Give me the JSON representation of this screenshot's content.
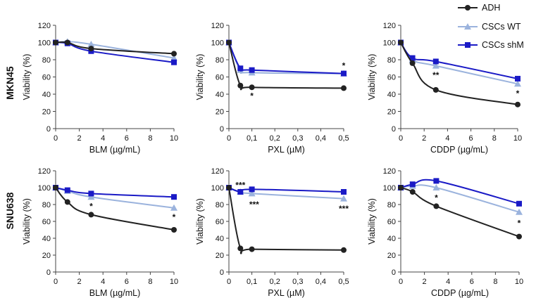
{
  "legend": [
    {
      "name": "ADH",
      "color": "#222222",
      "marker": "circle"
    },
    {
      "name": "CSCs WT",
      "color": "#9bb3dd",
      "marker": "triangle"
    },
    {
      "name": "CSCs shM",
      "color": "#1a1ac6",
      "marker": "square"
    }
  ],
  "row_labels": [
    "MKN45",
    "SNU638"
  ],
  "chart_data": [
    {
      "type": "line",
      "id": "mkn45-blm",
      "row": "MKN45",
      "xlabel": "BLM (µg/mL)",
      "ylabel": "Viability (%)",
      "xlim": [
        0,
        10
      ],
      "ylim": [
        0,
        120
      ],
      "xticks": [
        0,
        2,
        4,
        6,
        8,
        10
      ],
      "xtick_labels": [
        "0",
        "2",
        "4",
        "6",
        "8",
        "10"
      ],
      "yticks": [
        0,
        20,
        40,
        60,
        80,
        100,
        120
      ],
      "series": [
        {
          "name": "ADH",
          "x": [
            0,
            1,
            3,
            10
          ],
          "y": [
            100,
            100,
            93,
            87
          ]
        },
        {
          "name": "CSCs WT",
          "x": [
            0,
            1,
            3,
            10
          ],
          "y": [
            100,
            101,
            98,
            82
          ]
        },
        {
          "name": "CSCs shM",
          "x": [
            0,
            1,
            3,
            10
          ],
          "y": [
            100,
            99,
            90,
            77
          ]
        }
      ],
      "annotations": []
    },
    {
      "type": "line",
      "id": "mkn45-pxl",
      "row": "MKN45",
      "xlabel": "PXL (µM)",
      "ylabel": "Viability (%)",
      "xlim": [
        0,
        0.5
      ],
      "ylim": [
        0,
        120
      ],
      "xticks": [
        0,
        0.1,
        0.2,
        0.3,
        0.4,
        0.5
      ],
      "xtick_labels": [
        "0",
        "0,1",
        "0,2",
        "0,3",
        "0,4",
        "0,5"
      ],
      "yticks": [
        0,
        20,
        40,
        60,
        80,
        100,
        120
      ],
      "series": [
        {
          "name": "ADH",
          "x": [
            0,
            0.05,
            0.1,
            0.5
          ],
          "y": [
            100,
            50,
            48,
            47
          ]
        },
        {
          "name": "CSCs WT",
          "x": [
            0,
            0.05,
            0.1,
            0.5
          ],
          "y": [
            100,
            68,
            65,
            64
          ]
        },
        {
          "name": "CSCs shM",
          "x": [
            0,
            0.05,
            0.1,
            0.5
          ],
          "y": [
            100,
            70,
            68,
            64
          ]
        }
      ],
      "annotations": [
        {
          "x": 0.1,
          "y": 38,
          "text": "*"
        },
        {
          "x": 0.5,
          "y": 73,
          "text": "*"
        }
      ]
    },
    {
      "type": "line",
      "id": "mkn45-cddp",
      "row": "MKN45",
      "xlabel": "CDDP (µg/mL)",
      "ylabel": "Viability (%)",
      "xlim": [
        0,
        10
      ],
      "ylim": [
        0,
        120
      ],
      "xticks": [
        0,
        2,
        4,
        6,
        8,
        10
      ],
      "xtick_labels": [
        "0",
        "2",
        "4",
        "6",
        "8",
        "10"
      ],
      "yticks": [
        0,
        20,
        40,
        60,
        80,
        100,
        120
      ],
      "series": [
        {
          "name": "ADH",
          "x": [
            0,
            1,
            3,
            10
          ],
          "y": [
            100,
            76,
            45,
            28
          ]
        },
        {
          "name": "CSCs WT",
          "x": [
            0,
            1,
            3,
            10
          ],
          "y": [
            100,
            80,
            73,
            52
          ]
        },
        {
          "name": "CSCs shM",
          "x": [
            0,
            1,
            3,
            10
          ],
          "y": [
            100,
            82,
            78,
            58
          ]
        }
      ],
      "annotations": [
        {
          "x": 3,
          "y": 62,
          "text": "**"
        },
        {
          "x": 10,
          "y": 41,
          "text": "*"
        }
      ]
    },
    {
      "type": "line",
      "id": "snu638-blm",
      "row": "SNU638",
      "xlabel": "BLM (µg/mL)",
      "ylabel": "Viability (%)",
      "xlim": [
        0,
        10
      ],
      "ylim": [
        0,
        120
      ],
      "xticks": [
        0,
        2,
        4,
        6,
        8,
        10
      ],
      "xtick_labels": [
        "0",
        "2",
        "4",
        "6",
        "8",
        "10"
      ],
      "yticks": [
        0,
        20,
        40,
        60,
        80,
        100,
        120
      ],
      "series": [
        {
          "name": "ADH",
          "x": [
            0,
            1,
            3,
            10
          ],
          "y": [
            100,
            83,
            68,
            50
          ]
        },
        {
          "name": "CSCs WT",
          "x": [
            0,
            1,
            3,
            10
          ],
          "y": [
            100,
            96,
            89,
            76
          ]
        },
        {
          "name": "CSCs shM",
          "x": [
            0,
            1,
            3,
            10
          ],
          "y": [
            100,
            97,
            93,
            89
          ]
        }
      ],
      "annotations": [
        {
          "x": 3,
          "y": 78,
          "text": "*"
        },
        {
          "x": 10,
          "y": 65,
          "text": "*"
        }
      ]
    },
    {
      "type": "line",
      "id": "snu638-pxl",
      "row": "SNU638",
      "xlabel": "PXL (µM)",
      "ylabel": "Viability (%)",
      "xlim": [
        0,
        0.5
      ],
      "ylim": [
        0,
        120
      ],
      "xticks": [
        0,
        0.1,
        0.2,
        0.3,
        0.4,
        0.5
      ],
      "xtick_labels": [
        "0",
        "0,1",
        "0,2",
        "0,3",
        "0,4",
        "0,5"
      ],
      "yticks": [
        0,
        20,
        40,
        60,
        80,
        100,
        120
      ],
      "series": [
        {
          "name": "ADH",
          "x": [
            0,
            0.05,
            0.1,
            0.5
          ],
          "y": [
            100,
            28,
            27,
            26
          ]
        },
        {
          "name": "CSCs WT",
          "x": [
            0,
            0.05,
            0.1,
            0.5
          ],
          "y": [
            100,
            95,
            93,
            87
          ]
        },
        {
          "name": "CSCs shM",
          "x": [
            0,
            0.05,
            0.1,
            0.5
          ],
          "y": [
            100,
            95,
            98,
            95
          ]
        }
      ],
      "annotations": [
        {
          "x": 0.05,
          "y": 103,
          "text": "***"
        },
        {
          "x": 0.11,
          "y": 80,
          "text": "***"
        },
        {
          "x": 0.5,
          "y": 75,
          "text": "***"
        }
      ]
    },
    {
      "type": "line",
      "id": "snu638-cddp",
      "row": "SNU638",
      "xlabel": "CDDP (µg/mL)",
      "ylabel": "Viability (%)",
      "xlim": [
        0,
        10
      ],
      "ylim": [
        0,
        120
      ],
      "xticks": [
        0,
        2,
        4,
        6,
        8,
        10
      ],
      "xtick_labels": [
        "0",
        "2",
        "4",
        "6",
        "8",
        "10"
      ],
      "yticks": [
        0,
        20,
        40,
        60,
        80,
        100,
        120
      ],
      "series": [
        {
          "name": "ADH",
          "x": [
            0,
            1,
            3,
            10
          ],
          "y": [
            100,
            95,
            78,
            42
          ]
        },
        {
          "name": "CSCs WT",
          "x": [
            0,
            1,
            3,
            10
          ],
          "y": [
            100,
            102,
            100,
            71
          ]
        },
        {
          "name": "CSCs shM",
          "x": [
            0,
            1,
            3,
            10
          ],
          "y": [
            100,
            104,
            108,
            81
          ]
        }
      ],
      "annotations": [
        {
          "x": 3,
          "y": 88,
          "text": "*"
        },
        {
          "x": 10,
          "y": 58,
          "text": "*"
        }
      ]
    }
  ]
}
